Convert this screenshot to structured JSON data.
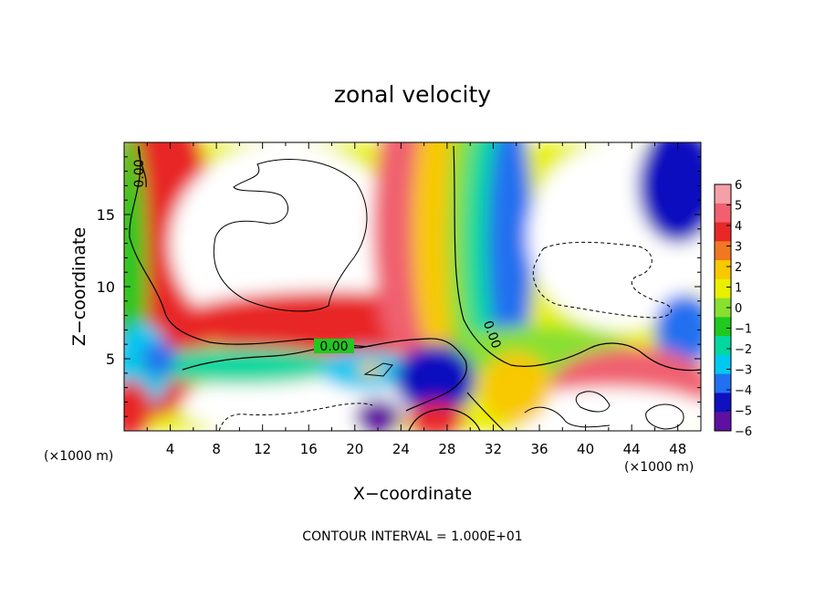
{
  "chart_data": {
    "type": "heatmap",
    "title": "zonal velocity",
    "xlabel": "X−coordinate",
    "ylabel": "Z−coordinate",
    "x_unit_left": "(×1000 m)",
    "x_unit_right": "(×1000 m)",
    "xlim": [
      0,
      50
    ],
    "ylim": [
      0,
      20
    ],
    "x_ticks": [
      4,
      8,
      12,
      16,
      20,
      24,
      28,
      32,
      36,
      40,
      44,
      48
    ],
    "x_tick_labels": [
      "4",
      "8",
      "12",
      "16",
      "20",
      "24",
      "28",
      "32",
      "36",
      "40",
      "44",
      "48"
    ],
    "y_ticks": [
      5,
      10,
      15
    ],
    "y_tick_labels": [
      "5",
      "10",
      "15"
    ],
    "footer": "CONTOUR INTERVAL = 1.000E+01",
    "contour_labels": [
      "0.00",
      "0.00",
      "0.00"
    ],
    "colorbar": {
      "levels": [
        "6",
        "5",
        "4",
        "3",
        "2",
        "1",
        "0",
        "−1",
        "−2",
        "−3",
        "−4",
        "−5",
        "−6"
      ],
      "colors": [
        "#f4a0a8",
        "#f06070",
        "#e82828",
        "#f07820",
        "#f8c800",
        "#e8f000",
        "#88e030",
        "#20c820",
        "#00d8a0",
        "#00c8f0",
        "#2070f0",
        "#1010c0",
        "#6010a0"
      ]
    },
    "blobs": [
      {
        "x": 3,
        "z": 12,
        "rx": 5,
        "rz": 11,
        "v": 4
      },
      {
        "x": 0.5,
        "z": 11,
        "rx": 1.5,
        "rz": 10,
        "v": -1
      },
      {
        "x": 1.5,
        "z": 4.5,
        "rx": 2.5,
        "rz": 3,
        "v": -3
      },
      {
        "x": 0.5,
        "z": 1.5,
        "rx": 2,
        "rz": 2,
        "v": 4
      },
      {
        "x": 14,
        "z": 13,
        "rx": 10,
        "rz": 7,
        "v": 8
      },
      {
        "x": 18,
        "z": 7.5,
        "rx": 14,
        "rz": 2.2,
        "v": 4
      },
      {
        "x": 24.5,
        "z": 14,
        "rx": 3,
        "rz": 9,
        "v": 5
      },
      {
        "x": 27,
        "z": 14,
        "rx": 2,
        "rz": 9,
        "v": 2
      },
      {
        "x": 29.5,
        "z": 13,
        "rx": 1.5,
        "rz": 10,
        "v": 0
      },
      {
        "x": 31.5,
        "z": 13,
        "rx": 2,
        "rz": 9,
        "v": -2
      },
      {
        "x": 33.5,
        "z": 13,
        "rx": 2,
        "rz": 9,
        "v": -4
      },
      {
        "x": 43,
        "z": 13.5,
        "rx": 8,
        "rz": 6.5,
        "v": 8
      },
      {
        "x": 48,
        "z": 17,
        "rx": 3.5,
        "rz": 4,
        "v": -5
      },
      {
        "x": 48.5,
        "z": 7,
        "rx": 2.5,
        "rz": 2.5,
        "v": -4
      },
      {
        "x": 36,
        "z": 5.5,
        "rx": 8,
        "rz": 1.8,
        "v": 0
      },
      {
        "x": 44,
        "z": 3,
        "rx": 7,
        "rz": 2.8,
        "v": 5
      },
      {
        "x": 42,
        "z": 1.2,
        "rx": 9,
        "rz": 1.8,
        "v": 8
      },
      {
        "x": 34,
        "z": 3,
        "rx": 3,
        "rz": 2.5,
        "v": 2
      },
      {
        "x": 15,
        "z": 1.8,
        "rx": 10,
        "rz": 2.2,
        "v": 8
      },
      {
        "x": 10,
        "z": 4.5,
        "rx": 9,
        "rz": 1.3,
        "v": -2
      },
      {
        "x": 21,
        "z": 4.2,
        "rx": 4,
        "rz": 1.4,
        "v": -3
      },
      {
        "x": 27,
        "z": 3.5,
        "rx": 3.5,
        "rz": 2.5,
        "v": -5
      },
      {
        "x": 27,
        "z": 0.8,
        "rx": 2.5,
        "rz": 1.2,
        "v": 4
      },
      {
        "x": 22,
        "z": 1,
        "rx": 2,
        "rz": 1.2,
        "v": -6
      },
      {
        "x": 21.3,
        "z": 4.3,
        "rx": 1,
        "rz": 0.5,
        "v": 2
      },
      {
        "x": 3,
        "z": 5,
        "rx": 1.5,
        "rz": 1.2,
        "v": -4
      }
    ]
  }
}
